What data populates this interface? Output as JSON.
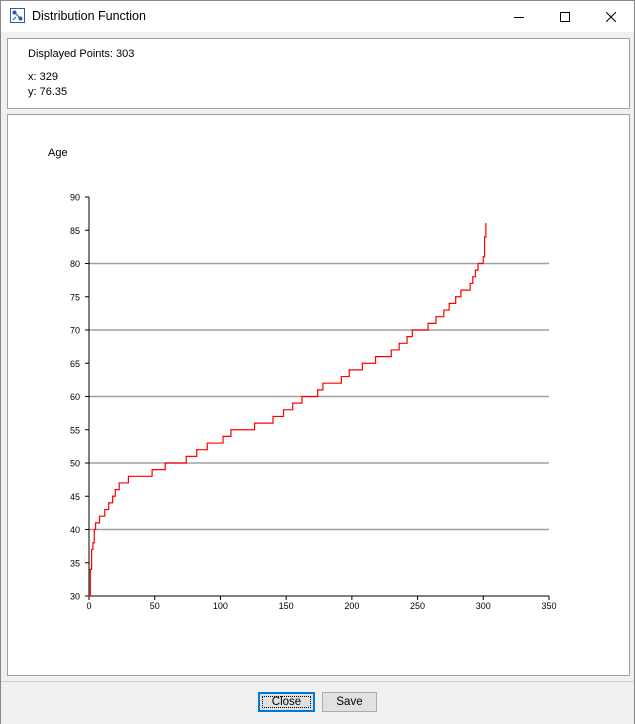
{
  "window": {
    "title": "Distribution Function",
    "controls": {
      "minimize": "minimize",
      "maximize": "maximize",
      "close": "close"
    }
  },
  "info": {
    "displayed_points": "Displayed Points: 303",
    "x_readout": "x: 329",
    "y_readout": "y: 76.35"
  },
  "buttons": {
    "close_label": "Close",
    "save_label": "Save"
  },
  "chart_data": {
    "type": "line",
    "ylabel": "Age",
    "xlabel": "",
    "xlim": [
      0,
      350
    ],
    "ylim": [
      30,
      90
    ],
    "x_ticks": [
      0,
      50,
      100,
      150,
      200,
      250,
      300,
      350
    ],
    "y_ticks": [
      30,
      35,
      40,
      45,
      50,
      55,
      60,
      65,
      70,
      75,
      80,
      85,
      90
    ],
    "gridlines_y": [
      40,
      50,
      60,
      70,
      80
    ],
    "line_color": "#ff0000",
    "series": [
      {
        "step": true,
        "points": [
          [
            0,
            30
          ],
          [
            1,
            34
          ],
          [
            2,
            37
          ],
          [
            3,
            38
          ],
          [
            4,
            40
          ],
          [
            5,
            41
          ],
          [
            8,
            42
          ],
          [
            12,
            43
          ],
          [
            15,
            44
          ],
          [
            18,
            45
          ],
          [
            20,
            46
          ],
          [
            23,
            47
          ],
          [
            30,
            48
          ],
          [
            48,
            49
          ],
          [
            58,
            50
          ],
          [
            74,
            51
          ],
          [
            82,
            52
          ],
          [
            90,
            53
          ],
          [
            102,
            54
          ],
          [
            108,
            55
          ],
          [
            126,
            56
          ],
          [
            140,
            57
          ],
          [
            148,
            58
          ],
          [
            155,
            59
          ],
          [
            162,
            60
          ],
          [
            174,
            61
          ],
          [
            178,
            62
          ],
          [
            192,
            63
          ],
          [
            198,
            64
          ],
          [
            208,
            65
          ],
          [
            218,
            66
          ],
          [
            230,
            67
          ],
          [
            236,
            68
          ],
          [
            242,
            69
          ],
          [
            246,
            70
          ],
          [
            258,
            71
          ],
          [
            264,
            72
          ],
          [
            270,
            73
          ],
          [
            274,
            74
          ],
          [
            279,
            75
          ],
          [
            283,
            76
          ],
          [
            290,
            77
          ],
          [
            292,
            78
          ],
          [
            294,
            79
          ],
          [
            296,
            80
          ],
          [
            300,
            81
          ],
          [
            301,
            84
          ],
          [
            302,
            86
          ]
        ]
      }
    ]
  }
}
